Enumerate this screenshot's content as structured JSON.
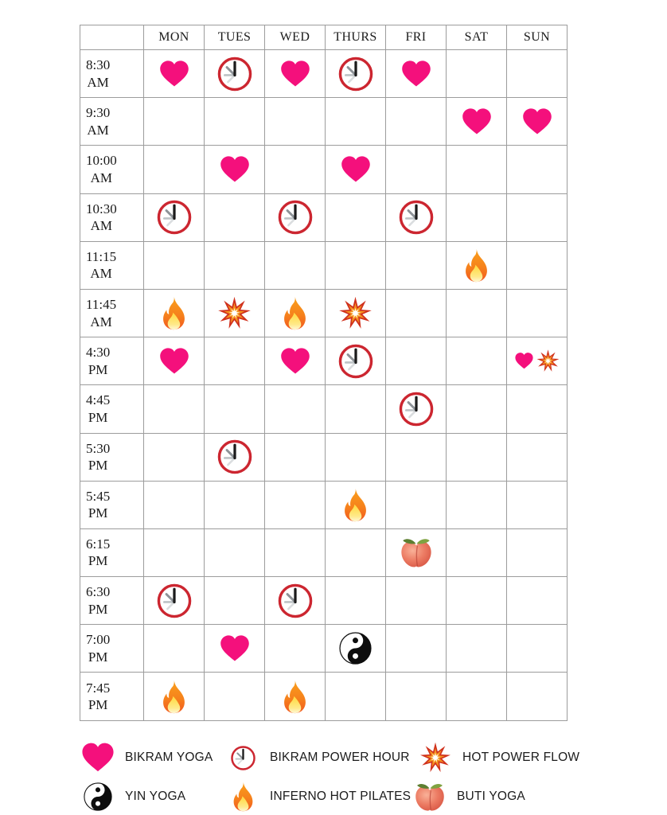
{
  "colors": {
    "heart_pink": "#F4107C",
    "clock_ring_red": "#CC2630",
    "grid_line_gray": "#9C9C9C",
    "fire_orange": "#F5921E",
    "burst_red": "#D0311D"
  },
  "schedule": {
    "corner_label": "",
    "day_headers": [
      "MON",
      "TUES",
      "WED",
      "THURS",
      "FRI",
      "SAT",
      "SUN"
    ],
    "rows": [
      {
        "time": "8:30 AM",
        "cells": [
          [
            "heart"
          ],
          [
            "clock"
          ],
          [
            "heart"
          ],
          [
            "clock"
          ],
          [
            "heart"
          ],
          [],
          []
        ]
      },
      {
        "time": "9:30 AM",
        "cells": [
          [],
          [],
          [],
          [],
          [],
          [
            "heart"
          ],
          [
            "heart"
          ]
        ]
      },
      {
        "time": "10:00 AM",
        "cells": [
          [],
          [
            "heart"
          ],
          [],
          [
            "heart"
          ],
          [],
          [],
          []
        ]
      },
      {
        "time": "10:30 AM",
        "cells": [
          [
            "clock"
          ],
          [],
          [
            "clock"
          ],
          [],
          [
            "clock"
          ],
          [],
          []
        ]
      },
      {
        "time": "11:15 AM",
        "cells": [
          [],
          [],
          [],
          [],
          [],
          [
            "fire"
          ],
          []
        ]
      },
      {
        "time": "11:45 AM",
        "cells": [
          [
            "fire"
          ],
          [
            "burst"
          ],
          [
            "fire"
          ],
          [
            "burst"
          ],
          [],
          [],
          []
        ]
      },
      {
        "time": "4:30 PM",
        "cells": [
          [
            "heart"
          ],
          [],
          [
            "heart"
          ],
          [
            "clock"
          ],
          [],
          [],
          [
            "heart",
            "burst"
          ]
        ]
      },
      {
        "time": "4:45 PM",
        "cells": [
          [],
          [],
          [],
          [],
          [
            "clock"
          ],
          [],
          []
        ]
      },
      {
        "time": "5:30 PM",
        "cells": [
          [],
          [
            "clock"
          ],
          [],
          [],
          [],
          [],
          []
        ]
      },
      {
        "time": "5:45 PM",
        "cells": [
          [],
          [],
          [],
          [
            "fire"
          ],
          [],
          [],
          []
        ]
      },
      {
        "time": "6:15 PM",
        "cells": [
          [],
          [],
          [],
          [],
          [
            "peach"
          ],
          [],
          []
        ]
      },
      {
        "time": "6:30 PM",
        "cells": [
          [
            "clock"
          ],
          [],
          [
            "clock"
          ],
          [],
          [],
          [],
          []
        ]
      },
      {
        "time": "7:00 PM",
        "cells": [
          [],
          [
            "heart"
          ],
          [],
          [
            "yinyang"
          ],
          [],
          [],
          []
        ]
      },
      {
        "time": "7:45 PM",
        "cells": [
          [
            "fire"
          ],
          [],
          [
            "fire"
          ],
          [],
          [],
          [],
          []
        ]
      }
    ]
  },
  "legend": {
    "items": [
      {
        "icon": "heart",
        "label": "BIKRAM YOGA"
      },
      {
        "icon": "clock",
        "label": "BIKRAM POWER HOUR"
      },
      {
        "icon": "burst",
        "label": "HOT POWER FLOW"
      },
      {
        "icon": "yinyang",
        "label": "YIN YOGA"
      },
      {
        "icon": "fire",
        "label": "INFERNO HOT PILATES"
      },
      {
        "icon": "peach",
        "label": "BUTI YOGA"
      }
    ]
  }
}
